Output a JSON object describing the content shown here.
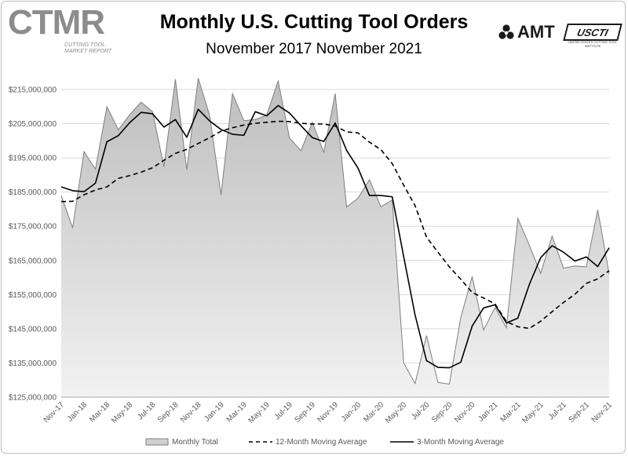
{
  "header": {
    "title": "Monthly U.S. Cutting Tool Orders",
    "subtitle": "November 2017 November 2021"
  },
  "logos": {
    "ctmr": "CTMR",
    "ctmr_sub": "CUTTING TOOL MARKET REPORT",
    "amt": "AMT",
    "uscti": "USCTI",
    "uscti_sub": "UNITED STATES CUTTING TOOL INSTITUTE"
  },
  "colors": {
    "area_fill": "#d0d0d0",
    "area_line": "#7f7f7f",
    "ma3_line": "#000000",
    "ma12_line": "#000000",
    "grid": "#d9d9d9",
    "axis_text": "#595959"
  },
  "chart_data": {
    "type": "area",
    "title": "Monthly U.S. Cutting Tool Orders",
    "subtitle": "November 2017 November 2021",
    "ylim": [
      125000000,
      215000000
    ],
    "yticks": [
      125000000,
      135000000,
      145000000,
      155000000,
      165000000,
      175000000,
      185000000,
      195000000,
      205000000,
      215000000
    ],
    "ytick_labels": [
      "$125,000,000",
      "$135,000,000",
      "$145,000,000",
      "$155,000,000",
      "$165,000,000",
      "$175,000,000",
      "$185,000,000",
      "$195,000,000",
      "$205,000,000",
      "$215,000,000"
    ],
    "grid": true,
    "legend_position": "bottom",
    "x": [
      "Nov-17",
      "Dec-17",
      "Jan-18",
      "Feb-18",
      "Mar-18",
      "Apr-18",
      "May-18",
      "Jun-18",
      "Jul-18",
      "Aug-18",
      "Sep-18",
      "Oct-18",
      "Nov-18",
      "Dec-18",
      "Jan-19",
      "Feb-19",
      "Mar-19",
      "Apr-19",
      "May-19",
      "Jun-19",
      "Jul-19",
      "Aug-19",
      "Sep-19",
      "Oct-19",
      "Nov-19",
      "Dec-19",
      "Jan-20",
      "Feb-20",
      "Mar-20",
      "Apr-20",
      "May-20",
      "Jun-20",
      "Jul-20",
      "Aug-20",
      "Sep-20",
      "Oct-20",
      "Nov-20",
      "Dec-20",
      "Jan-21",
      "Feb-21",
      "Mar-21",
      "Apr-21",
      "May-21",
      "Jun-21",
      "Jul-21",
      "Aug-21",
      "Sep-21",
      "Oct-21",
      "Nov-21"
    ],
    "xtick_labels": [
      "Nov-17",
      "Jan-18",
      "Mar-18",
      "May-18",
      "Jul-18",
      "Sep-18",
      "Nov-18",
      "Jan-19",
      "Mar-19",
      "May-19",
      "Jul-19",
      "Sep-19",
      "Nov-19",
      "Jan-20",
      "Mar-20",
      "May-20",
      "Jul-20",
      "Sep-20",
      "Nov-20",
      "Jan-21",
      "Mar-21",
      "May-21",
      "Jul-21",
      "Sep-21",
      "Nov-21"
    ],
    "series": [
      {
        "name": "Monthly Total",
        "style": "area",
        "values": [
          184000000,
          174500000,
          196800000,
          191700000,
          210000000,
          203200000,
          207600000,
          211300000,
          208500000,
          192400000,
          218000000,
          191500000,
          218300000,
          207400000,
          184200000,
          213800000,
          205900000,
          206200000,
          207500000,
          217500000,
          200800000,
          197100000,
          205400000,
          196600000,
          213800000,
          180600000,
          183200000,
          188600000,
          180700000,
          182700000,
          135000000,
          129000000,
          143000000,
          129300000,
          128800000,
          148300000,
          160300000,
          144600000,
          151200000,
          145300000,
          177300000,
          169500000,
          161200000,
          172100000,
          162700000,
          163400000,
          163100000,
          179800000,
          161000000
        ]
      },
      {
        "name": "12-Month Moving Average",
        "style": "dashed",
        "values": [
          182200000,
          182300000,
          184200000,
          185600000,
          186500000,
          189000000,
          189800000,
          190800000,
          192100000,
          194300000,
          196300000,
          197500000,
          199200000,
          200900000,
          202800000,
          203800000,
          204600000,
          205100000,
          205400000,
          205700000,
          205600000,
          205100000,
          204900000,
          204900000,
          204300000,
          202600000,
          202300000,
          199600000,
          197400000,
          193300000,
          187000000,
          181000000,
          171800000,
          167400000,
          163100000,
          159500000,
          155600000,
          154000000,
          152300000,
          147100000,
          145600000,
          145100000,
          147200000,
          150000000,
          152700000,
          155100000,
          158300000,
          159600000,
          162000000
        ]
      },
      {
        "name": "3-Month Moving Average",
        "style": "solid",
        "values": [
          186500000,
          185400000,
          185100000,
          187600000,
          199700000,
          201500000,
          205300000,
          208300000,
          207900000,
          204000000,
          206200000,
          201000000,
          209200000,
          205800000,
          203300000,
          201900000,
          201600000,
          208500000,
          207300000,
          210300000,
          208100000,
          204400000,
          200900000,
          199800000,
          205200000,
          197200000,
          192000000,
          184000000,
          184000000,
          183600000,
          166100000,
          149000000,
          135700000,
          133700000,
          133600000,
          135200000,
          145800000,
          151100000,
          152000000,
          146700000,
          148100000,
          157900000,
          165800000,
          169300000,
          167400000,
          164800000,
          166000000,
          163200000,
          168700000
        ]
      }
    ]
  }
}
